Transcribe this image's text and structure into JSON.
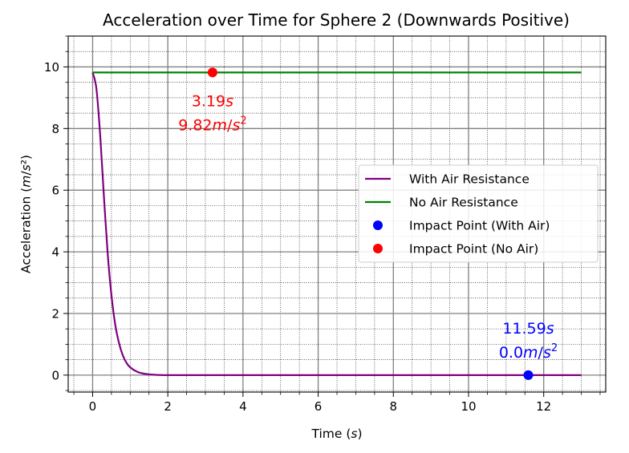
{
  "chart_data": {
    "type": "line",
    "title": "Acceleration over Time for Sphere 2 (Downwards Positive)",
    "xlabel": "Time (s)",
    "ylabel": "Acceleration (m/s²)",
    "xlim": [
      -0.65,
      13.65
    ],
    "ylim": [
      -0.55,
      11.0
    ],
    "xticks": [
      0,
      2,
      4,
      6,
      8,
      10,
      12
    ],
    "yticks": [
      0,
      2,
      4,
      6,
      8,
      10
    ],
    "xtick_labels": [
      "0",
      "2",
      "4",
      "6",
      "8",
      "10",
      "12"
    ],
    "ytick_labels": [
      "0",
      "2",
      "4",
      "6",
      "8",
      "10"
    ],
    "grid": "major and minor",
    "legend_position": "center-right",
    "series": [
      {
        "name": "With Air Resistance",
        "kind": "line",
        "color": "#800080",
        "model": "exponential-decay",
        "x": [
          0,
          0.1,
          0.2,
          0.3,
          0.4,
          0.5,
          0.6,
          0.7,
          0.8,
          0.9,
          1.0,
          1.2,
          1.4,
          1.6,
          2.0,
          3.0,
          13.0
        ],
        "y": [
          9.82,
          9.3,
          7.8,
          5.8,
          3.95,
          2.6,
          1.65,
          1.05,
          0.65,
          0.4,
          0.25,
          0.1,
          0.04,
          0.015,
          0.0,
          0.0,
          0.0
        ]
      },
      {
        "name": "No Air Resistance",
        "kind": "line",
        "color": "#008000",
        "x": [
          0,
          13
        ],
        "y": [
          9.82,
          9.82
        ]
      },
      {
        "name": "Impact Point (With Air)",
        "kind": "scatter",
        "color": "#0000ff",
        "x": [
          11.59
        ],
        "y": [
          0.0
        ]
      },
      {
        "name": "Impact Point (No Air)",
        "kind": "scatter",
        "color": "#ff0000",
        "x": [
          3.19
        ],
        "y": [
          9.82
        ]
      }
    ],
    "annotations": [
      {
        "line1": "3.19s",
        "line2": "9.82m/s²",
        "x": 3.19,
        "y": 9.82,
        "color": "#ff0000"
      },
      {
        "line1": "11.59s",
        "line2": "0.0m/s²",
        "x": 11.59,
        "y": 0.0,
        "color": "#0000ff"
      }
    ]
  }
}
